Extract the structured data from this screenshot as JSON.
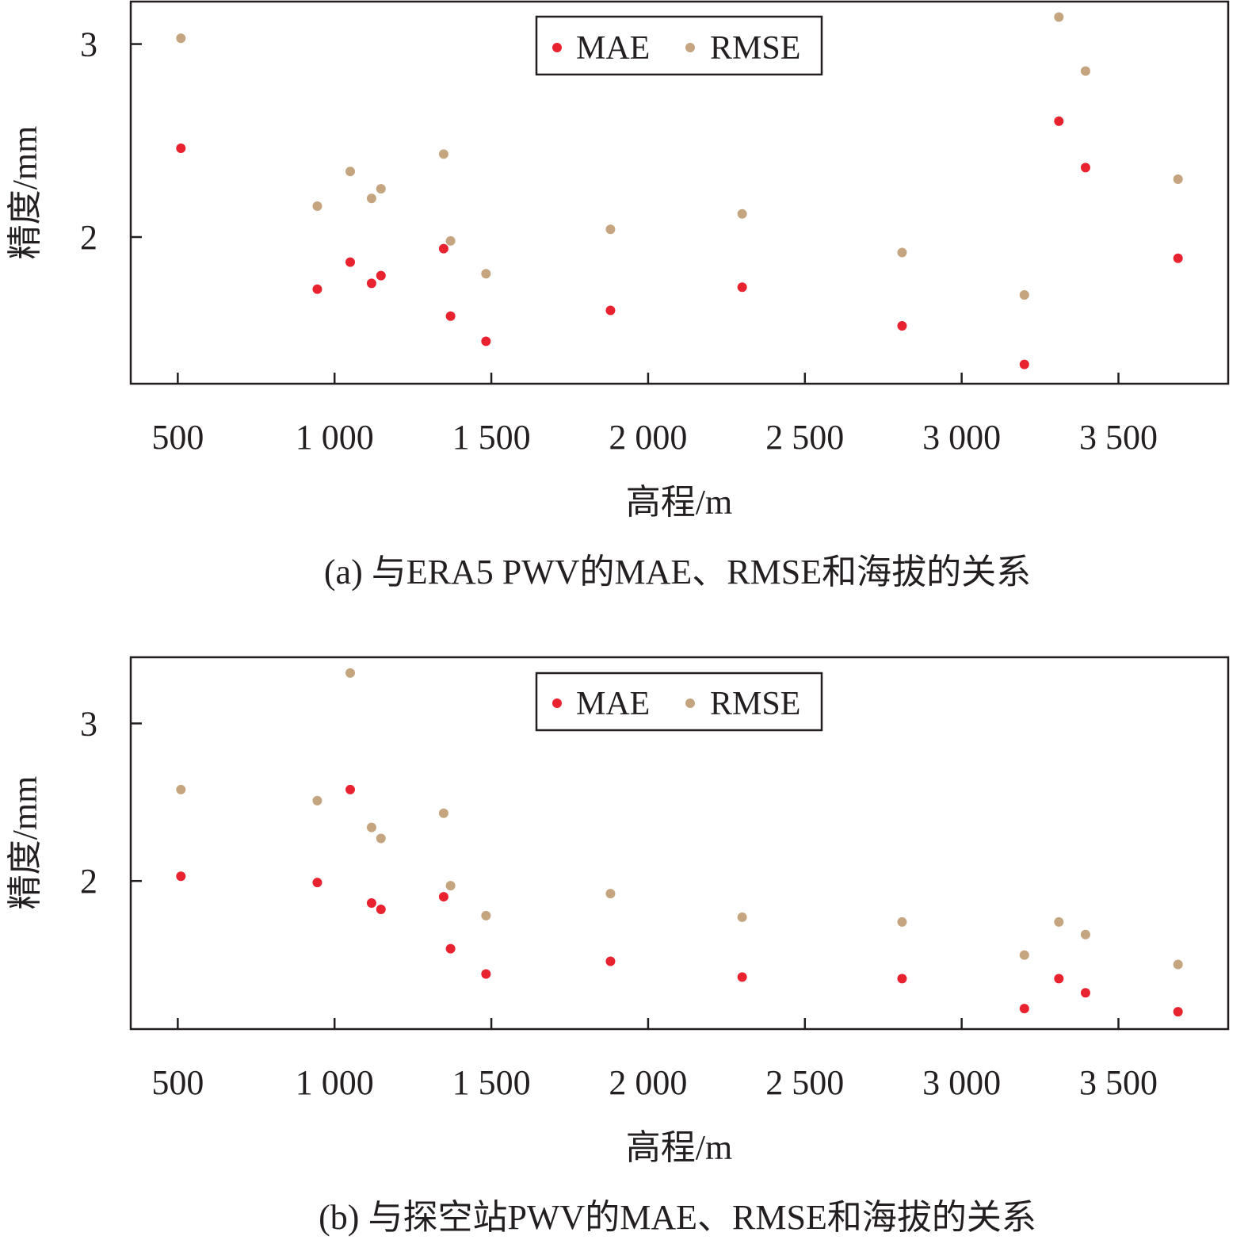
{
  "chart_data": [
    {
      "type": "scatter",
      "panel": "a",
      "caption": "(a) 与ERA5 PWV的MAE、RMSE和海拔的关系",
      "xlabel": "高程/m",
      "ylabel": "精度/mm",
      "xlim": [
        350,
        3850
      ],
      "ylim": [
        1.24,
        3.22
      ],
      "xticks": [
        500,
        1000,
        1500,
        2000,
        2500,
        3000,
        3500
      ],
      "xtick_labels": [
        "500",
        "1 000",
        "1 500",
        "2 000",
        "2 500",
        "3 000",
        "3 500"
      ],
      "yticks": [
        2,
        3
      ],
      "ytick_labels": [
        "2",
        "3"
      ],
      "legend": {
        "position": "top-center",
        "entries": [
          "MAE",
          "RMSE"
        ]
      },
      "series": [
        {
          "name": "MAE",
          "color": "#e8222f",
          "points": [
            [
              510,
              2.46
            ],
            [
              945,
              1.73
            ],
            [
              1050,
              1.87
            ],
            [
              1118,
              1.76
            ],
            [
              1148,
              1.8
            ],
            [
              1348,
              1.94
            ],
            [
              1370,
              1.59
            ],
            [
              1483,
              1.46
            ],
            [
              1880,
              1.62
            ],
            [
              2300,
              1.74
            ],
            [
              2810,
              1.54
            ],
            [
              3200,
              1.34
            ],
            [
              3310,
              2.6
            ],
            [
              3395,
              2.36
            ],
            [
              3690,
              1.89
            ]
          ]
        },
        {
          "name": "RMSE",
          "color": "#c4a57f",
          "points": [
            [
              510,
              3.03
            ],
            [
              945,
              2.16
            ],
            [
              1050,
              2.34
            ],
            [
              1118,
              2.2
            ],
            [
              1148,
              2.25
            ],
            [
              1348,
              2.43
            ],
            [
              1370,
              1.98
            ],
            [
              1483,
              1.81
            ],
            [
              1880,
              2.04
            ],
            [
              2300,
              2.12
            ],
            [
              2810,
              1.92
            ],
            [
              3200,
              1.7
            ],
            [
              3310,
              3.14
            ],
            [
              3395,
              2.86
            ],
            [
              3690,
              2.3
            ]
          ]
        }
      ]
    },
    {
      "type": "scatter",
      "panel": "b",
      "caption": "(b) 与探空站PWV的MAE、RMSE和海拔的关系",
      "xlabel": "高程/m",
      "ylabel": "精度/mm",
      "xlim": [
        350,
        3850
      ],
      "ylim": [
        1.06,
        3.42
      ],
      "xticks": [
        500,
        1000,
        1500,
        2000,
        2500,
        3000,
        3500
      ],
      "xtick_labels": [
        "500",
        "1 000",
        "1 500",
        "2 000",
        "2 500",
        "3 000",
        "3 500"
      ],
      "yticks": [
        2,
        3
      ],
      "ytick_labels": [
        "2",
        "3"
      ],
      "legend": {
        "position": "top-center",
        "entries": [
          "MAE",
          "RMSE"
        ]
      },
      "series": [
        {
          "name": "MAE",
          "color": "#e8222f",
          "points": [
            [
              510,
              2.03
            ],
            [
              945,
              1.99
            ],
            [
              1050,
              2.58
            ],
            [
              1118,
              1.86
            ],
            [
              1148,
              1.82
            ],
            [
              1348,
              1.9
            ],
            [
              1370,
              1.57
            ],
            [
              1483,
              1.41
            ],
            [
              1880,
              1.49
            ],
            [
              2300,
              1.39
            ],
            [
              2810,
              1.38
            ],
            [
              3200,
              1.19
            ],
            [
              3310,
              1.38
            ],
            [
              3395,
              1.29
            ],
            [
              3690,
              1.17
            ]
          ]
        },
        {
          "name": "RMSE",
          "color": "#c4a57f",
          "points": [
            [
              510,
              2.58
            ],
            [
              945,
              2.51
            ],
            [
              1050,
              3.32
            ],
            [
              1118,
              2.34
            ],
            [
              1148,
              2.27
            ],
            [
              1348,
              2.43
            ],
            [
              1370,
              1.97
            ],
            [
              1483,
              1.78
            ],
            [
              1880,
              1.92
            ],
            [
              2300,
              1.77
            ],
            [
              2810,
              1.74
            ],
            [
              3200,
              1.53
            ],
            [
              3310,
              1.74
            ],
            [
              3395,
              1.66
            ],
            [
              3690,
              1.47
            ]
          ]
        }
      ]
    }
  ]
}
